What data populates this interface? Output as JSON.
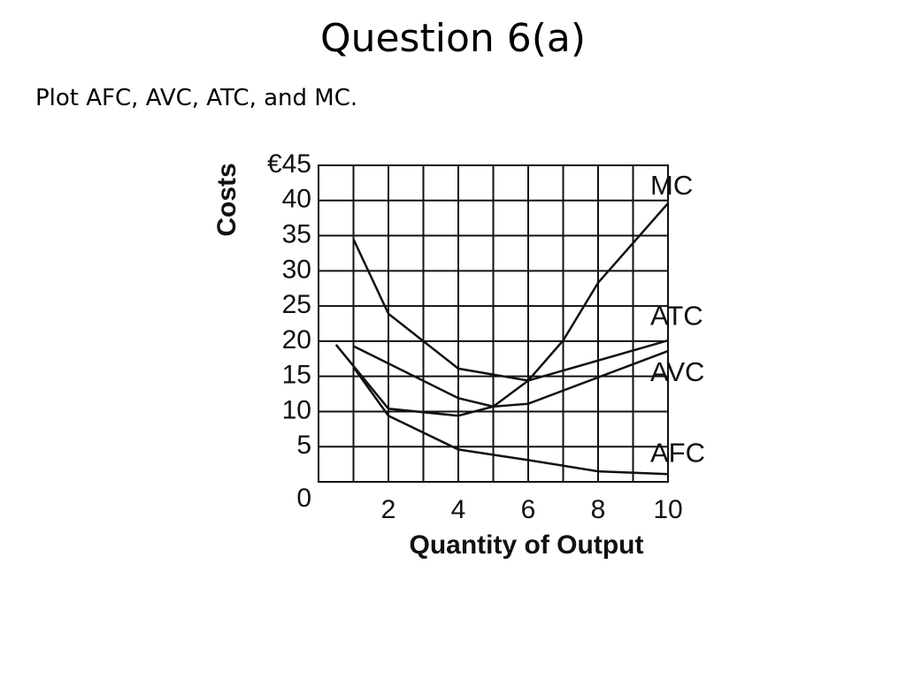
{
  "header": {
    "title": "Question 6(a)",
    "subtitle": "Plot AFC, AVC, ATC, and MC."
  },
  "chart_data": {
    "type": "line",
    "xlabel": "Quantity of Output",
    "ylabel": "Costs",
    "xlim": [
      0,
      10
    ],
    "ylim": [
      0,
      45
    ],
    "xticks": [
      2,
      4,
      6,
      8,
      10
    ],
    "xminor": [
      1,
      3,
      5,
      7,
      9
    ],
    "yticks": [
      0,
      5,
      10,
      15,
      20,
      25,
      30,
      35,
      40,
      {
        "value": 45,
        "label": "€45"
      }
    ],
    "grid": true,
    "color": "#111",
    "series": [
      {
        "name": "MC",
        "x": [
          0.5,
          2,
          4,
          5,
          6,
          7,
          8,
          10
        ],
        "values": [
          19.5,
          10.4,
          9.4,
          10.7,
          14.4,
          20.1,
          28.3,
          39.6
        ]
      },
      {
        "name": "ATC",
        "x": [
          1,
          2,
          4,
          6,
          10
        ],
        "values": [
          34.5,
          23.9,
          16.1,
          14.4,
          20.1
        ]
      },
      {
        "name": "AVC",
        "x": [
          1,
          4,
          5,
          6,
          10
        ],
        "values": [
          19.3,
          11.9,
          10.7,
          11.1,
          18.6
        ]
      },
      {
        "name": "AFC",
        "x": [
          1,
          2,
          4,
          6,
          8,
          10
        ],
        "values": [
          16.3,
          9.4,
          4.6,
          3.1,
          1.5,
          1.1
        ]
      }
    ]
  }
}
